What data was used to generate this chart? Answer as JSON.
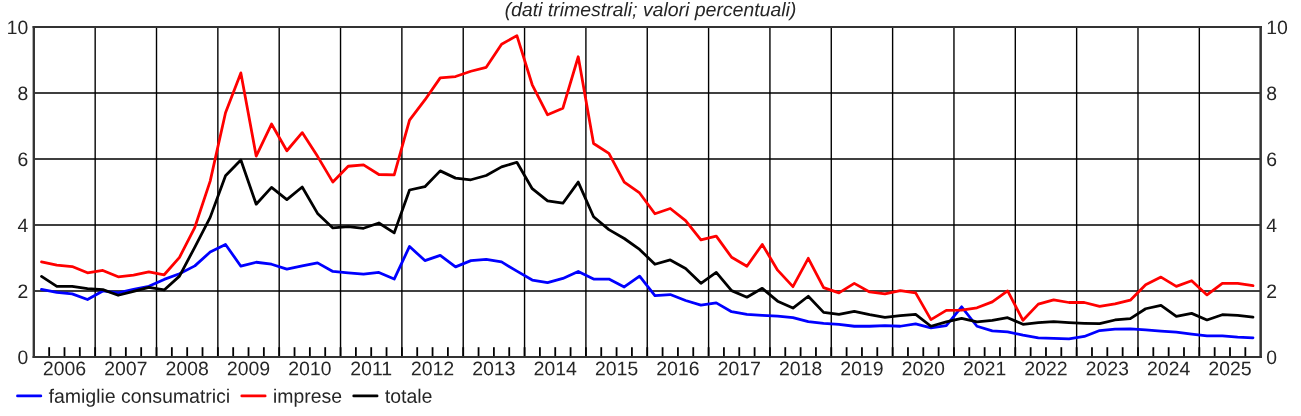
{
  "chart_data": {
    "type": "line",
    "title": "(dati trimestrali; valori percentuali)",
    "x": [
      2006.125,
      2006.375,
      2006.625,
      2006.875,
      2007.125,
      2007.375,
      2007.625,
      2007.875,
      2008.125,
      2008.375,
      2008.625,
      2008.875,
      2009.125,
      2009.375,
      2009.625,
      2009.875,
      2010.125,
      2010.375,
      2010.625,
      2010.875,
      2011.125,
      2011.375,
      2011.625,
      2011.875,
      2012.125,
      2012.375,
      2012.625,
      2012.875,
      2013.125,
      2013.375,
      2013.625,
      2013.875,
      2014.125,
      2014.375,
      2014.625,
      2014.875,
      2015.125,
      2015.375,
      2015.625,
      2015.875,
      2016.125,
      2016.375,
      2016.625,
      2016.875,
      2017.125,
      2017.375,
      2017.625,
      2017.875,
      2018.125,
      2018.375,
      2018.625,
      2018.875,
      2019.125,
      2019.375,
      2019.625,
      2019.875,
      2020.125,
      2020.375,
      2020.625,
      2020.875,
      2021.125,
      2021.375,
      2021.625,
      2021.875,
      2022.125,
      2022.375,
      2022.625,
      2022.875,
      2023.125,
      2023.375,
      2023.625,
      2023.875,
      2024.125,
      2024.375,
      2024.625,
      2024.875,
      2025.125,
      2025.375,
      2025.625,
      2025.875
    ],
    "series": [
      {
        "name": "famiglie consumatrici",
        "color": "#0000ff",
        "values": [
          2.05,
          1.96,
          1.91,
          1.74,
          2.0,
          1.94,
          2.05,
          2.14,
          2.35,
          2.52,
          2.76,
          3.18,
          3.41,
          2.75,
          2.87,
          2.81,
          2.66,
          2.76,
          2.85,
          2.59,
          2.55,
          2.51,
          2.56,
          2.36,
          3.35,
          2.92,
          3.08,
          2.73,
          2.92,
          2.96,
          2.88,
          2.6,
          2.33,
          2.25,
          2.38,
          2.59,
          2.36,
          2.36,
          2.12,
          2.45,
          1.86,
          1.89,
          1.71,
          1.57,
          1.64,
          1.37,
          1.29,
          1.26,
          1.24,
          1.19,
          1.07,
          1.02,
          0.99,
          0.93,
          0.93,
          0.95,
          0.93,
          1.0,
          0.88,
          0.95,
          1.52,
          0.93,
          0.79,
          0.76,
          0.66,
          0.58,
          0.56,
          0.55,
          0.62,
          0.8,
          0.84,
          0.85,
          0.82,
          0.78,
          0.75,
          0.69,
          0.64,
          0.64,
          0.6,
          0.58
        ]
      },
      {
        "name": "imprese",
        "color": "#ff0000",
        "values": [
          2.88,
          2.78,
          2.74,
          2.55,
          2.62,
          2.43,
          2.48,
          2.58,
          2.49,
          3.02,
          3.93,
          5.33,
          7.4,
          8.61,
          6.09,
          7.06,
          6.25,
          6.8,
          6.08,
          5.3,
          5.78,
          5.82,
          5.53,
          5.52,
          7.18,
          7.79,
          8.46,
          8.5,
          8.66,
          8.78,
          9.48,
          9.74,
          8.25,
          7.34,
          7.54,
          9.1,
          6.47,
          6.17,
          5.3,
          4.97,
          4.34,
          4.5,
          4.13,
          3.55,
          3.66,
          3.02,
          2.75,
          3.41,
          2.63,
          2.13,
          2.99,
          2.1,
          1.94,
          2.23,
          1.97,
          1.91,
          2.01,
          1.94,
          1.13,
          1.41,
          1.42,
          1.49,
          1.67,
          2.0,
          1.11,
          1.6,
          1.73,
          1.65,
          1.65,
          1.53,
          1.61,
          1.72,
          2.19,
          2.42,
          2.14,
          2.31,
          1.88,
          2.23,
          2.23,
          2.16
        ]
      },
      {
        "name": "totale",
        "color": "#000000",
        "values": [
          2.44,
          2.14,
          2.14,
          2.07,
          2.04,
          1.87,
          1.99,
          2.11,
          2.03,
          2.45,
          3.33,
          4.23,
          5.49,
          5.97,
          4.63,
          5.14,
          4.77,
          5.15,
          4.35,
          3.91,
          3.95,
          3.9,
          4.06,
          3.76,
          5.06,
          5.16,
          5.64,
          5.42,
          5.37,
          5.5,
          5.76,
          5.9,
          5.1,
          4.73,
          4.66,
          5.3,
          4.25,
          3.86,
          3.59,
          3.26,
          2.81,
          2.94,
          2.68,
          2.23,
          2.56,
          2.01,
          1.81,
          2.08,
          1.69,
          1.48,
          1.84,
          1.35,
          1.29,
          1.38,
          1.28,
          1.2,
          1.25,
          1.29,
          0.93,
          1.06,
          1.17,
          1.06,
          1.11,
          1.19,
          0.99,
          1.04,
          1.07,
          1.04,
          1.02,
          1.01,
          1.12,
          1.16,
          1.46,
          1.56,
          1.23,
          1.32,
          1.12,
          1.28,
          1.26,
          1.21
        ]
      }
    ],
    "xlim": [
      2006,
      2026
    ],
    "xticks": [
      {
        "value": 2006.25,
        "label": null
      },
      {
        "value": 2006.5,
        "label": "2006"
      },
      {
        "value": 2006.75,
        "label": null
      },
      {
        "value": 2007,
        "label": null
      },
      {
        "value": 2007.25,
        "label": null
      },
      {
        "value": 2007.5,
        "label": "2007"
      },
      {
        "value": 2007.75,
        "label": null
      },
      {
        "value": 2008,
        "label": null
      },
      {
        "value": 2008.25,
        "label": null
      },
      {
        "value": 2008.5,
        "label": "2008"
      },
      {
        "value": 2008.75,
        "label": null
      },
      {
        "value": 2009,
        "label": null
      },
      {
        "value": 2009.25,
        "label": null
      },
      {
        "value": 2009.5,
        "label": "2009"
      },
      {
        "value": 2009.75,
        "label": null
      },
      {
        "value": 2010,
        "label": null
      },
      {
        "value": 2010.25,
        "label": null
      },
      {
        "value": 2010.5,
        "label": "2010"
      },
      {
        "value": 2010.75,
        "label": null
      },
      {
        "value": 2011,
        "label": null
      },
      {
        "value": 2011.25,
        "label": null
      },
      {
        "value": 2011.5,
        "label": "2011"
      },
      {
        "value": 2011.75,
        "label": null
      },
      {
        "value": 2012,
        "label": null
      },
      {
        "value": 2012.25,
        "label": null
      },
      {
        "value": 2012.5,
        "label": "2012"
      },
      {
        "value": 2012.75,
        "label": null
      },
      {
        "value": 2013,
        "label": null
      },
      {
        "value": 2013.25,
        "label": null
      },
      {
        "value": 2013.5,
        "label": "2013"
      },
      {
        "value": 2013.75,
        "label": null
      },
      {
        "value": 2014,
        "label": null
      },
      {
        "value": 2014.25,
        "label": null
      },
      {
        "value": 2014.5,
        "label": "2014"
      },
      {
        "value": 2014.75,
        "label": null
      },
      {
        "value": 2015,
        "label": null
      },
      {
        "value": 2015.25,
        "label": null
      },
      {
        "value": 2015.5,
        "label": "2015"
      },
      {
        "value": 2015.75,
        "label": null
      },
      {
        "value": 2016,
        "label": null
      },
      {
        "value": 2016.25,
        "label": null
      },
      {
        "value": 2016.5,
        "label": "2016"
      },
      {
        "value": 2016.75,
        "label": null
      },
      {
        "value": 2017,
        "label": null
      },
      {
        "value": 2017.25,
        "label": null
      },
      {
        "value": 2017.5,
        "label": "2017"
      },
      {
        "value": 2017.75,
        "label": null
      },
      {
        "value": 2018,
        "label": null
      },
      {
        "value": 2018.25,
        "label": null
      },
      {
        "value": 2018.5,
        "label": "2018"
      },
      {
        "value": 2018.75,
        "label": null
      },
      {
        "value": 2019,
        "label": null
      },
      {
        "value": 2019.25,
        "label": null
      },
      {
        "value": 2019.5,
        "label": "2019"
      },
      {
        "value": 2019.75,
        "label": null
      },
      {
        "value": 2020,
        "label": null
      },
      {
        "value": 2020.25,
        "label": null
      },
      {
        "value": 2020.5,
        "label": "2020"
      },
      {
        "value": 2020.75,
        "label": null
      },
      {
        "value": 2021,
        "label": null
      },
      {
        "value": 2021.25,
        "label": null
      },
      {
        "value": 2021.5,
        "label": "2021"
      },
      {
        "value": 2021.75,
        "label": null
      },
      {
        "value": 2022,
        "label": null
      },
      {
        "value": 2022.25,
        "label": null
      },
      {
        "value": 2022.5,
        "label": "2022"
      },
      {
        "value": 2022.75,
        "label": null
      },
      {
        "value": 2023,
        "label": null
      },
      {
        "value": 2023.25,
        "label": null
      },
      {
        "value": 2023.5,
        "label": "2023"
      },
      {
        "value": 2023.75,
        "label": null
      },
      {
        "value": 2024,
        "label": null
      },
      {
        "value": 2024.25,
        "label": null
      },
      {
        "value": 2024.5,
        "label": "2024"
      },
      {
        "value": 2024.75,
        "label": null
      },
      {
        "value": 2025,
        "label": null
      },
      {
        "value": 2025.25,
        "label": null
      },
      {
        "value": 2025.5,
        "label": "2025"
      },
      {
        "value": 2025.75,
        "label": null
      }
    ],
    "ylim": [
      0,
      10
    ],
    "yticks": [
      0,
      2,
      4,
      6,
      8,
      10
    ],
    "y2lim": [
      0,
      10
    ],
    "y2ticks": [
      0,
      2,
      4,
      6,
      8,
      10
    ],
    "grid": true,
    "legend": "bottom left",
    "marker": "none",
    "line_style": "solid"
  }
}
